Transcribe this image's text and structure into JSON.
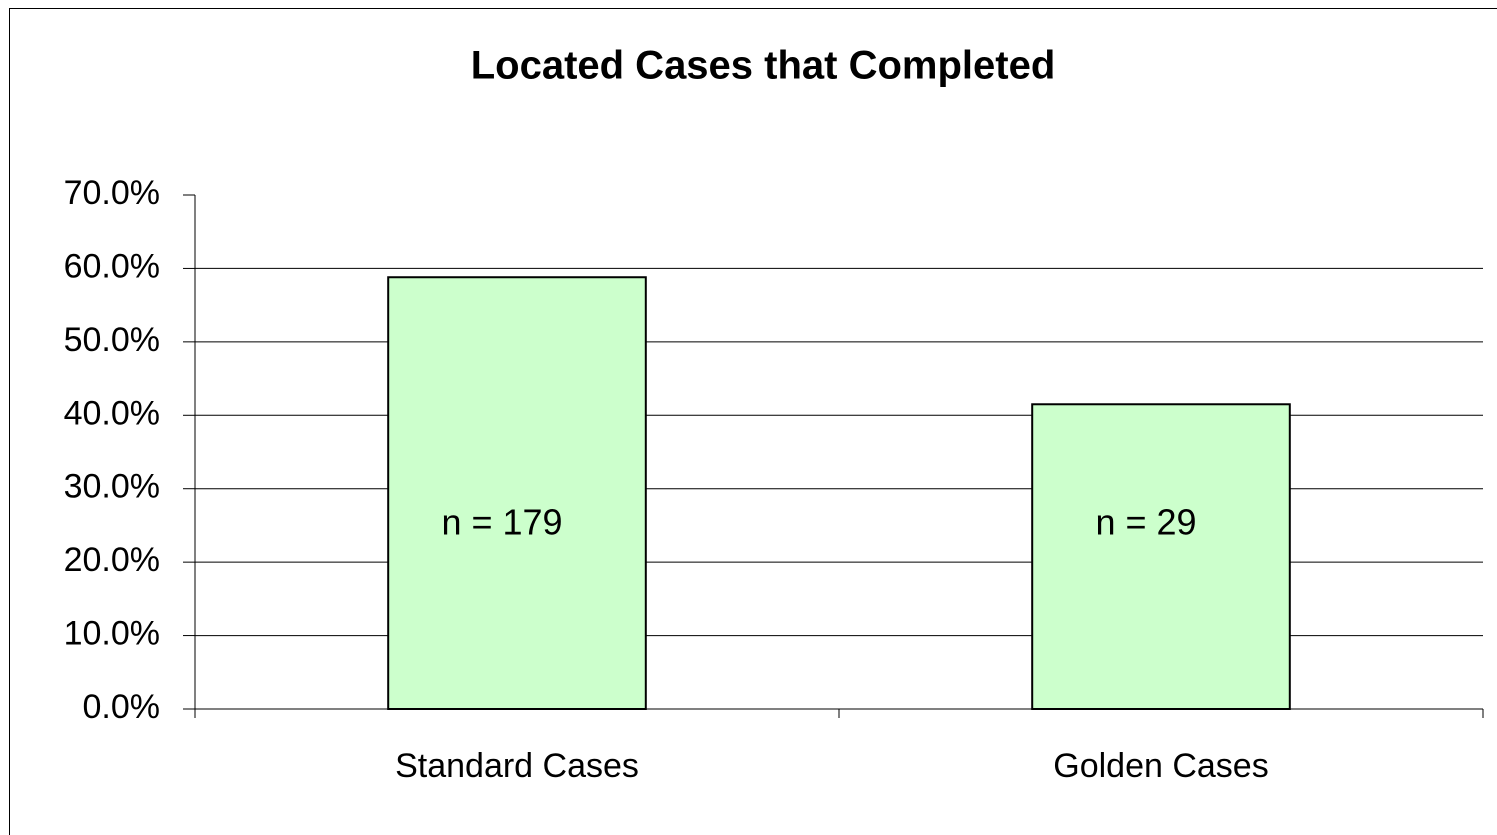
{
  "chart_data": {
    "type": "bar",
    "title": "Located Cases that Completed",
    "categories": [
      "Standard Cases",
      "Golden Cases"
    ],
    "values": [
      58.8,
      41.5
    ],
    "annotations": [
      "n = 179",
      "n = 29"
    ],
    "color": "#ccffcc",
    "ylim": [
      0,
      70
    ],
    "yticks": [
      {
        "value": 0,
        "label": "0.0%"
      },
      {
        "value": 10,
        "label": "10.0%"
      },
      {
        "value": 20,
        "label": "20.0%"
      },
      {
        "value": 30,
        "label": "30.0%"
      },
      {
        "value": 40,
        "label": "40.0%"
      },
      {
        "value": 50,
        "label": "50.0%"
      },
      {
        "value": 60,
        "label": "60.0%"
      },
      {
        "value": 70,
        "label": "70.0%"
      }
    ],
    "grid": true
  }
}
